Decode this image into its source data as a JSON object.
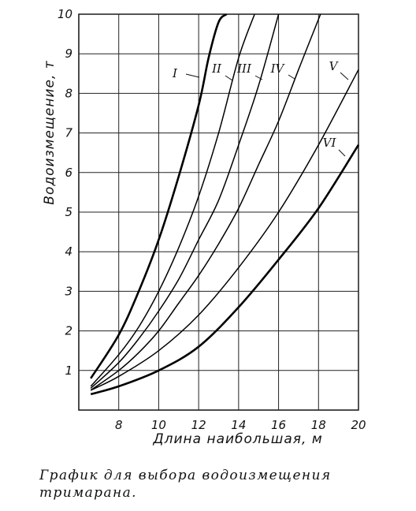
{
  "caption": "График для выбора водоизмещения тримарана.",
  "chart_data": {
    "type": "line",
    "title": "",
    "xlabel": "Длина наибольшая, м",
    "ylabel": "Водоизмещение, т",
    "xlim": [
      6.0,
      20.0
    ],
    "ylim": [
      0,
      10
    ],
    "xticks": [
      8,
      10,
      12,
      14,
      16,
      18,
      20
    ],
    "yticks": [
      1,
      2,
      3,
      4,
      5,
      6,
      7,
      8,
      9,
      10
    ],
    "grid": true,
    "series": [
      {
        "name": "I",
        "x": [
          6.6,
          8,
          9,
          10,
          11,
          12,
          12.5,
          13,
          13.4
        ],
        "y": [
          0.8,
          1.9,
          3.0,
          4.3,
          5.9,
          7.7,
          8.9,
          9.8,
          10.0
        ]
      },
      {
        "name": "II",
        "x": [
          6.6,
          8,
          9,
          10,
          11,
          12,
          13,
          14,
          14.8
        ],
        "y": [
          0.6,
          1.4,
          2.1,
          3.0,
          4.1,
          5.4,
          7.0,
          8.9,
          10.0
        ]
      },
      {
        "name": "III",
        "x": [
          6.6,
          8,
          9,
          10,
          11,
          12,
          13,
          14,
          15,
          16
        ],
        "y": [
          0.55,
          1.2,
          1.8,
          2.5,
          3.3,
          4.3,
          5.3,
          6.7,
          8.2,
          10.0
        ]
      },
      {
        "name": "IV",
        "x": [
          6.6,
          8,
          9,
          10,
          11,
          12,
          13,
          14,
          15,
          16,
          17,
          18.1
        ],
        "y": [
          0.5,
          1.0,
          1.45,
          2.0,
          2.7,
          3.4,
          4.2,
          5.1,
          6.2,
          7.3,
          8.6,
          10.0
        ]
      },
      {
        "name": "V",
        "x": [
          6.6,
          8,
          10,
          12,
          14,
          16,
          18,
          20
        ],
        "y": [
          0.5,
          0.85,
          1.5,
          2.4,
          3.6,
          5.0,
          6.7,
          8.6
        ]
      },
      {
        "name": "VI",
        "x": [
          6.6,
          8,
          10,
          12,
          14,
          16,
          18,
          20
        ],
        "y": [
          0.4,
          0.6,
          1.0,
          1.6,
          2.6,
          3.8,
          5.1,
          6.7
        ]
      }
    ],
    "bold_series": [
      "I",
      "VI"
    ],
    "line_color": "#000000"
  }
}
